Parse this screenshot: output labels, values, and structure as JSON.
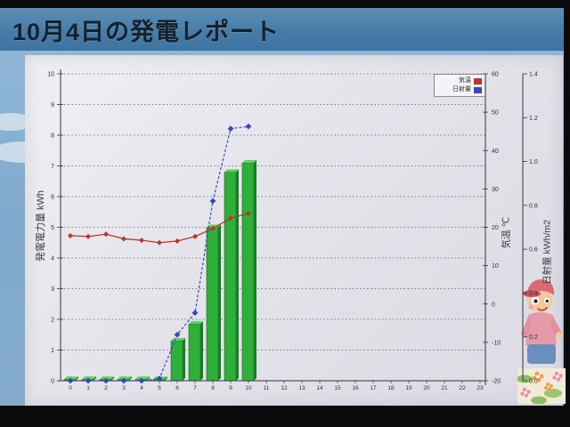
{
  "header": {
    "title": "10月4日の発電レポート"
  },
  "legend": [
    {
      "label": "気温",
      "color": "#bb3431"
    },
    {
      "label": "日射量",
      "color": "#3447be"
    }
  ],
  "chart_data": {
    "type": "bar",
    "x": [
      0,
      1,
      2,
      3,
      4,
      5,
      6,
      7,
      8,
      9,
      10,
      11,
      12,
      13,
      14,
      15,
      16,
      17,
      18,
      19,
      20,
      21,
      22,
      23
    ],
    "series": [
      {
        "name": "発電電力量",
        "type": "bar",
        "axis": "left",
        "unit": "kWh",
        "color": "#2fae3b",
        "values": [
          0.05,
          0.05,
          0.05,
          0.05,
          0.05,
          0.05,
          1.3,
          1.85,
          5.0,
          6.8,
          7.1
        ]
      },
      {
        "name": "気温",
        "type": "line",
        "axis": "right1",
        "unit": "℃",
        "color": "#bb3431",
        "values": [
          17.8,
          17.6,
          18.2,
          17.0,
          16.6,
          16.0,
          16.4,
          17.6,
          19.7,
          22.4,
          23.6
        ]
      },
      {
        "name": "日射量",
        "type": "line",
        "axis": "right2",
        "unit": "kWh/m2",
        "color": "#3447be",
        "values": [
          0,
          0,
          0,
          0,
          0,
          0.01,
          0.21,
          0.31,
          0.82,
          1.15,
          1.16
        ]
      }
    ],
    "axes": {
      "left": {
        "title": "発電電力量 kWh",
        "min": 0,
        "max": 10,
        "step": 1
      },
      "right1": {
        "title": "気温 ℃",
        "min": -20,
        "max": 60,
        "step": 10
      },
      "right2": {
        "title": "日射量 kWh/m2",
        "min": 0,
        "max": 1.4,
        "step": 0.2
      },
      "x": {
        "min": 0,
        "max": 23,
        "step": 1
      }
    },
    "grid": "horizontal-dashed",
    "legend_position": "top-right"
  }
}
